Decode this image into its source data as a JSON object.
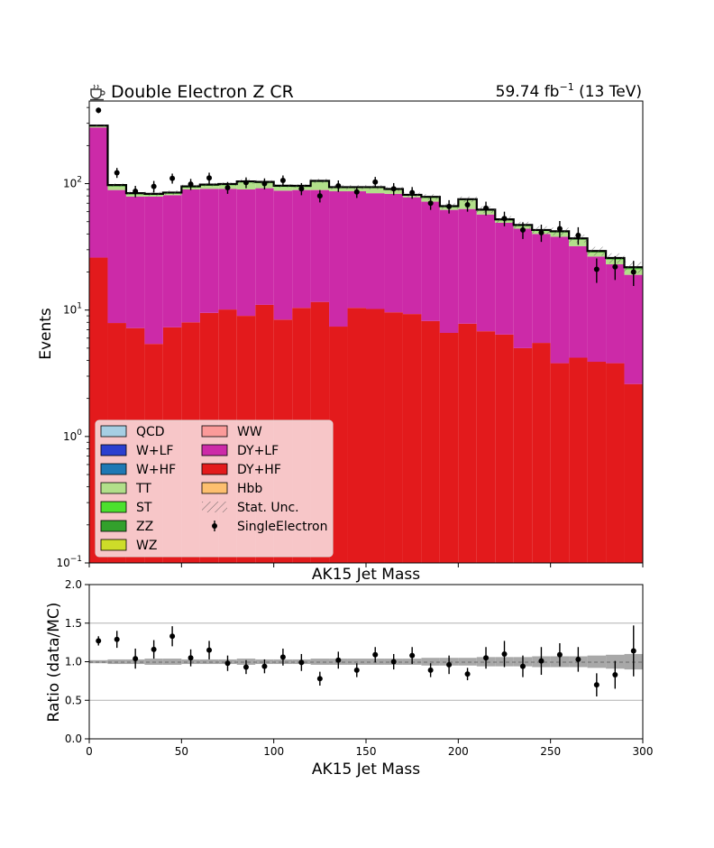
{
  "chart_data": [
    {
      "type": "bar",
      "stacked": true,
      "yscale": "log",
      "title_left": "Double Electron Z CR",
      "title_icon": "coffee-icon",
      "title_right": "59.74 fb",
      "title_right_sup": "−1",
      "title_right_suffix": " (13 TeV)",
      "xlabel": "AK15 Jet Mass",
      "ylabel": "Events",
      "xlim": [
        0,
        300
      ],
      "ylim": [
        0.1,
        450
      ],
      "yticks": [
        {
          "v": 0.1,
          "base": "10",
          "exp": "−1"
        },
        {
          "v": 1,
          "base": "10",
          "exp": "0"
        },
        {
          "v": 10,
          "base": "10",
          "exp": "1"
        },
        {
          "v": 100,
          "base": "10",
          "exp": "2"
        }
      ],
      "bin_edges": [
        0,
        10,
        20,
        30,
        40,
        50,
        60,
        70,
        80,
        90,
        100,
        110,
        120,
        130,
        140,
        150,
        160,
        170,
        180,
        190,
        200,
        210,
        220,
        230,
        240,
        250,
        260,
        270,
        280,
        290,
        300
      ],
      "series": [
        {
          "name": "DY+HF",
          "color": "#e31a1c",
          "values": [
            26,
            7.9,
            7.2,
            5.4,
            7.3,
            8,
            9.5,
            10.1,
            9,
            11,
            8.4,
            10.4,
            11.6,
            7.4,
            10.4,
            10.2,
            9.6,
            9.3,
            8.2,
            6.6,
            7.8,
            6.8,
            6.4,
            5,
            5.5,
            3.8,
            4.2,
            3.9,
            3.8,
            2.6
          ]
        },
        {
          "name": "DY+LF",
          "color": "#cc2aa8",
          "values": [
            252,
            81.1,
            71.8,
            73.6,
            73.7,
            82,
            81.5,
            80.9,
            81,
            81,
            79.6,
            78.6,
            77.4,
            79.6,
            76.6,
            73.8,
            73.4,
            68.7,
            63.8,
            55.4,
            55.2,
            50.2,
            42.6,
            39,
            34.5,
            34.2,
            27.8,
            22.6,
            19.2,
            16.4
          ]
        },
        {
          "name": "Hbb",
          "color": "#fdbf6f",
          "values": [
            0,
            0,
            0,
            0,
            0,
            0,
            0,
            0,
            0,
            0,
            0,
            0,
            0.17,
            0,
            0,
            0,
            0,
            0,
            0,
            0,
            0,
            0,
            0,
            0,
            0,
            0,
            0,
            0,
            0,
            0
          ]
        },
        {
          "name": "TT",
          "color": "#b2df8a",
          "values": [
            7,
            6,
            3,
            2,
            2,
            3,
            5,
            6,
            12,
            9,
            6,
            5,
            14,
            5,
            5,
            8,
            6,
            2,
            5,
            3,
            11,
            4,
            2,
            2,
            2,
            3,
            4,
            2,
            2,
            2
          ]
        },
        {
          "name": "ST",
          "color": "#4ce02e",
          "values": [
            1,
            1,
            0.8,
            0.8,
            0.8,
            1,
            1,
            1,
            1,
            1,
            1,
            0.8,
            1,
            0.8,
            0.8,
            0.8,
            0.8,
            0.7,
            0.7,
            0.6,
            0.6,
            0.6,
            0.5,
            0.5,
            0.4,
            0.4,
            0.4,
            0.3,
            0.3,
            0.3
          ]
        },
        {
          "name": "ZZ",
          "color": "#33a02c",
          "values": [
            1.5,
            1,
            0.8,
            0.8,
            0.8,
            0.8,
            0.8,
            0.8,
            0.8,
            0.8,
            0.8,
            0.8,
            0.7,
            0.7,
            0.7,
            0.7,
            0.6,
            0.6,
            0.6,
            0.5,
            0.5,
            0.5,
            0.5,
            0.4,
            0.4,
            0.4,
            0.3,
            0.3,
            0.3,
            0.3
          ]
        },
        {
          "name": "WZ",
          "color": "#cddc29",
          "values": [
            0.5,
            0.5,
            0.4,
            0.4,
            0.4,
            0.4,
            0.4,
            0.4,
            0.4,
            0.4,
            0.4,
            0.4,
            0.3,
            0.3,
            0.3,
            0.3,
            0.3,
            0.3,
            0.3,
            0.3,
            0.2,
            0.2,
            0.2,
            0.2,
            0.2,
            0.2,
            0.2,
            0.2,
            0.2,
            0.2
          ]
        }
      ],
      "legend_entries": [
        {
          "label": "QCD",
          "color": "#a6cee3",
          "kind": "box"
        },
        {
          "label": "W+LF",
          "color": "#2b3fcf",
          "kind": "box"
        },
        {
          "label": "W+HF",
          "color": "#1f78b4",
          "kind": "box"
        },
        {
          "label": "TT",
          "color": "#b2df8a",
          "kind": "box"
        },
        {
          "label": "ST",
          "color": "#4ce02e",
          "kind": "box"
        },
        {
          "label": "ZZ",
          "color": "#33a02c",
          "kind": "box"
        },
        {
          "label": "WZ",
          "color": "#cddc29",
          "kind": "box"
        },
        {
          "label": "WW",
          "color": "#fb9a99",
          "kind": "box"
        },
        {
          "label": "DY+LF",
          "color": "#cc2aa8",
          "kind": "box"
        },
        {
          "label": "DY+HF",
          "color": "#e31a1c",
          "kind": "box"
        },
        {
          "label": "Hbb",
          "color": "#fdbf6f",
          "kind": "box"
        },
        {
          "label": "Stat. Unc.",
          "color": "#888888",
          "kind": "hatch"
        },
        {
          "label": "SingleElectron",
          "color": "#000000",
          "kind": "point"
        }
      ],
      "legend_placement": "lower-left",
      "data_points": {
        "name": "SingleElectron",
        "x": [
          5,
          15,
          25,
          35,
          45,
          55,
          65,
          75,
          85,
          95,
          105,
          115,
          125,
          135,
          145,
          155,
          165,
          175,
          185,
          195,
          205,
          215,
          225,
          235,
          245,
          255,
          265,
          275,
          285,
          295
        ],
        "y": [
          380,
          122,
          87,
          95,
          110,
          99,
          111,
          93,
          102,
          100,
          106,
          91,
          80,
          96,
          86,
          103,
          91,
          85,
          70,
          66,
          68,
          64,
          53,
          43,
          41,
          44,
          39,
          21,
          22,
          20
        ],
        "err": [
          19,
          11,
          9,
          10,
          10,
          10,
          11,
          10,
          10,
          10,
          10,
          10,
          9,
          10,
          9,
          10,
          10,
          9,
          8,
          8,
          8,
          8,
          7,
          6.5,
          6.4,
          6.6,
          6.2,
          4.6,
          4.7,
          4.5
        ]
      }
    },
    {
      "type": "scatter",
      "xlabel": "AK15 Jet Mass",
      "ylabel": "Ratio (data/MC)",
      "xlim": [
        0,
        300
      ],
      "ylim": [
        0,
        2
      ],
      "yticks": [
        "0.0",
        "0.5",
        "1.0",
        "1.5",
        "2.0"
      ],
      "xticks": [
        "0",
        "50",
        "100",
        "150",
        "200",
        "250",
        "300"
      ],
      "grid": "horizontal",
      "x": [
        5,
        15,
        25,
        35,
        45,
        55,
        65,
        75,
        85,
        95,
        105,
        115,
        125,
        135,
        145,
        155,
        165,
        175,
        185,
        195,
        205,
        215,
        225,
        235,
        245,
        255,
        265,
        275,
        285,
        295
      ],
      "y": [
        1.27,
        1.29,
        1.04,
        1.16,
        1.33,
        1.05,
        1.15,
        0.98,
        0.93,
        0.94,
        1.06,
        0.99,
        0.78,
        1.02,
        0.89,
        1.09,
        1.0,
        1.08,
        0.89,
        0.96,
        0.84,
        1.05,
        1.1,
        0.94,
        1.01,
        1.09,
        1.03,
        0.7,
        0.83,
        1.14
      ],
      "err": [
        0.06,
        0.11,
        0.13,
        0.12,
        0.13,
        0.11,
        0.12,
        0.1,
        0.09,
        0.09,
        0.11,
        0.11,
        0.09,
        0.11,
        0.09,
        0.1,
        0.1,
        0.11,
        0.09,
        0.12,
        0.08,
        0.14,
        0.17,
        0.14,
        0.18,
        0.15,
        0.16,
        0.15,
        0.18,
        0.33
      ],
      "unc_band": [
        0.02,
        0.03,
        0.03,
        0.04,
        0.04,
        0.03,
        0.03,
        0.03,
        0.04,
        0.03,
        0.03,
        0.03,
        0.04,
        0.04,
        0.04,
        0.04,
        0.04,
        0.04,
        0.05,
        0.05,
        0.05,
        0.06,
        0.06,
        0.06,
        0.07,
        0.07,
        0.07,
        0.08,
        0.09,
        0.1
      ]
    }
  ]
}
